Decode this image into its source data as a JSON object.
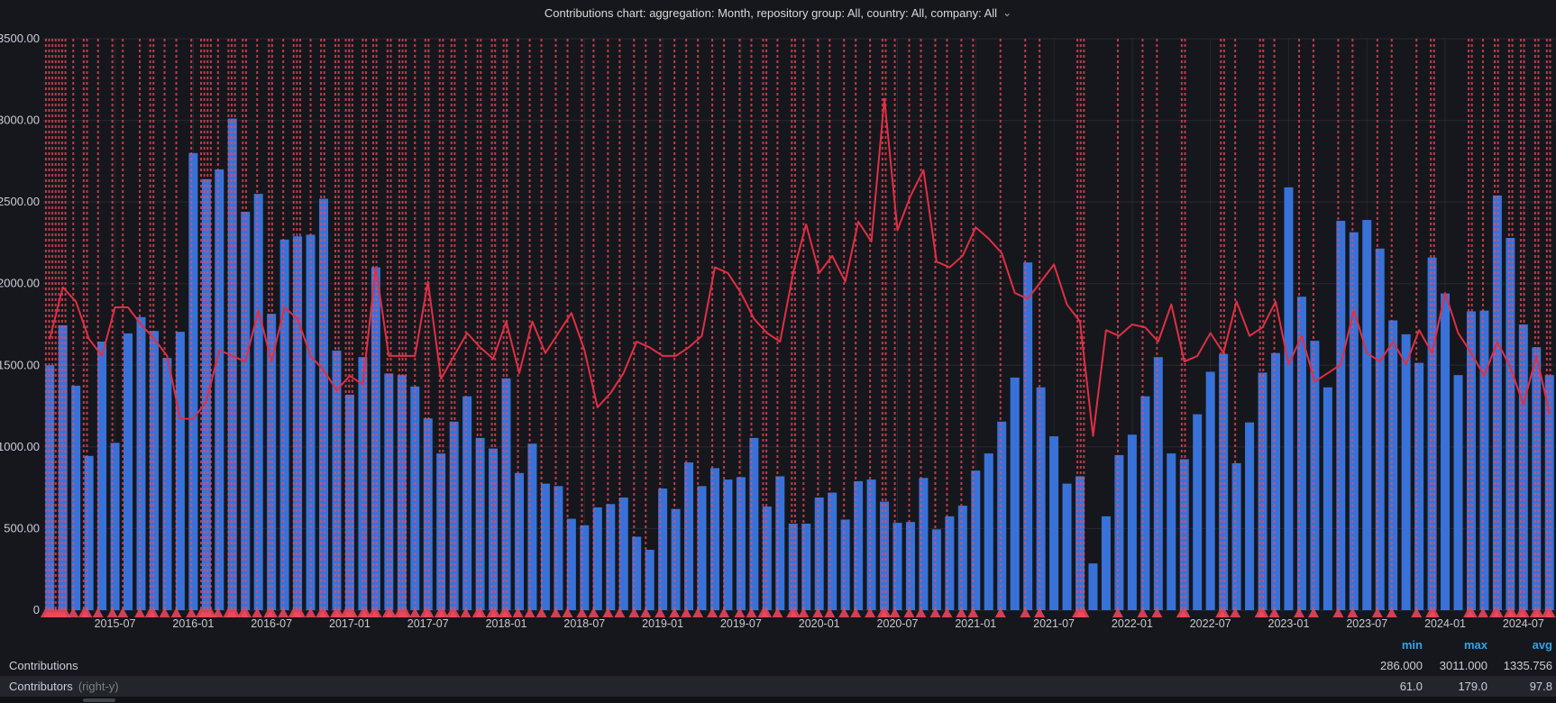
{
  "header": {
    "title": "Contributions chart: aggregation: Month, repository group: All, country: All, company: All"
  },
  "icons": {
    "chevron_down": "⌄"
  },
  "colors": {
    "background": "#16171c",
    "bar_blue": "#3872d9",
    "line_red": "#e02f44",
    "annotation_red": "#f2495c",
    "grid": "#353941",
    "axis_text": "#c8c9cd",
    "legend_header_blue": "#33a2e5",
    "legend_row_alt_bg": "#22252b"
  },
  "chart_data": {
    "type": "bar",
    "subtype": "bar+line combo with vertical annotation lines",
    "title": "Contributions chart: aggregation: Month, repository group: All, country: All, company: All",
    "x_interval": "month",
    "x_start": "2015-02",
    "x_end": "2024-09",
    "x_tick_labels": [
      "2015-07",
      "2016-01",
      "2016-07",
      "2017-01",
      "2017-07",
      "2018-01",
      "2018-07",
      "2019-01",
      "2019-07",
      "2020-01",
      "2020-07",
      "2021-01",
      "2021-07",
      "2022-01",
      "2022-07",
      "2023-01",
      "2023-07",
      "2024-01",
      "2024-07"
    ],
    "x_tick_month_indices": [
      5,
      11,
      17,
      23,
      29,
      35,
      41,
      47,
      53,
      59,
      65,
      71,
      77,
      83,
      89,
      95,
      101,
      107,
      113
    ],
    "left_y": {
      "label": "",
      "min": 0,
      "max": 3500,
      "tick_labels": [
        "3500.00",
        "3000.00",
        "2500.00",
        "2000.00",
        "1500.00",
        "1000.00",
        "500.00",
        "0"
      ],
      "grid": true
    },
    "right_y": {
      "label": "right-y",
      "min": 0,
      "max": 200,
      "axis_labels_shown": false
    },
    "series": [
      {
        "name": "Contributions",
        "type": "bars",
        "axis": "left",
        "color": "#3872d9",
        "values": [
          1500,
          1745,
          1375,
          945,
          1645,
          1025,
          1695,
          1795,
          1710,
          1545,
          1705,
          2800,
          2640,
          2700,
          3011,
          2440,
          2550,
          1815,
          2270,
          2290,
          2300,
          2520,
          1590,
          1320,
          1550,
          2100,
          1450,
          1440,
          1370,
          1175,
          960,
          1155,
          1310,
          1055,
          990,
          1420,
          840,
          1020,
          775,
          760,
          560,
          520,
          630,
          650,
          690,
          450,
          370,
          745,
          620,
          905,
          760,
          870,
          800,
          815,
          1055,
          635,
          820,
          530,
          530,
          690,
          720,
          555,
          790,
          800,
          665,
          535,
          540,
          810,
          495,
          575,
          640,
          855,
          960,
          1155,
          1425,
          2130,
          1365,
          1065,
          775,
          820,
          286,
          575,
          950,
          1075,
          1310,
          1550,
          960,
          925,
          1200,
          1460,
          1570,
          900,
          1150,
          1455,
          1575,
          2590,
          1920,
          1650,
          1365,
          2385,
          2315,
          2390,
          2215,
          1775,
          1690,
          1515,
          2160,
          1940,
          1440,
          1830,
          1835,
          2540,
          2280,
          1750,
          1610,
          1440
        ]
      },
      {
        "name": "Contributors",
        "type": "line",
        "axis": "right",
        "color": "#e02f44",
        "values": [
          95,
          113,
          108,
          95,
          89,
          106,
          106,
          100,
          95,
          89,
          67,
          67,
          73,
          91,
          89,
          87,
          105,
          87,
          106,
          102,
          89,
          84,
          77,
          82,
          79,
          120,
          89,
          89,
          89,
          115,
          81,
          89,
          97,
          92,
          88,
          101,
          83,
          101,
          90,
          97,
          104,
          91,
          71,
          76,
          83,
          94,
          92,
          89,
          89,
          92,
          96,
          120,
          118,
          111,
          102,
          97,
          94,
          118,
          135,
          118,
          124,
          115,
          136,
          129,
          179,
          133,
          145,
          154,
          122,
          120,
          124,
          134,
          130,
          125,
          111,
          109,
          115,
          121,
          107,
          101,
          61,
          98,
          96,
          100,
          99,
          94,
          107,
          87,
          89,
          97,
          90,
          108,
          96,
          99,
          108,
          86,
          96,
          80,
          83,
          86,
          105,
          90,
          87,
          94,
          86,
          98,
          90,
          111,
          97,
          90,
          82,
          94,
          85,
          72,
          89,
          69
        ]
      }
    ],
    "annotations": {
      "style": "vertical dashed lines with triangle markers at bottom",
      "color": "#f2495c",
      "positions_month_units": [
        0.2,
        0.45,
        0.7,
        0.95,
        1.2,
        1.45,
        1.7,
        2.3,
        3.1,
        3.35,
        4.2,
        5.3,
        6.1,
        7.4,
        8.2,
        8.45,
        9.3,
        10.2,
        11.35,
        12.1,
        12.35,
        12.6,
        12.85,
        13.4,
        14.2,
        14.45,
        14.7,
        15.3,
        15.55,
        16.4,
        17.3,
        17.55,
        18.4,
        19.2,
        19.45,
        19.7,
        20.5,
        21.3,
        21.55,
        22.4,
        22.65,
        23.2,
        23.45,
        23.7,
        24.5,
        24.75,
        25.3,
        25.55,
        26.4,
        26.65,
        27.3,
        27.55,
        27.8,
        28.5,
        29.3,
        29.55,
        30.4,
        30.65,
        31.3,
        31.55,
        32.4,
        33.3,
        33.55,
        34.4,
        34.65,
        35.3,
        35.55,
        36.4,
        37.3,
        38.2,
        39.3,
        40.2,
        41.3,
        42.2,
        43.3,
        44.2,
        45.3,
        46.2,
        47.3,
        48.4,
        49.3,
        50.2,
        51.3,
        52.2,
        53.4,
        54.3,
        55.2,
        55.45,
        56.3,
        57.4,
        57.65,
        58.3,
        59.4,
        60.3,
        61.4,
        62.3,
        63.4,
        64.35,
        64.6,
        65.3,
        66.4,
        67.3,
        68.4,
        69.3,
        70.4,
        71.3,
        73.4,
        75.3,
        76.4,
        79.3,
        79.55,
        79.8,
        82.4,
        84.3,
        85.4,
        87.3,
        87.55,
        90.3,
        90.55,
        91.4,
        93.3,
        93.55,
        94.4,
        96.3,
        97.4,
        99.3,
        100.4,
        102.3,
        103.4,
        105.3,
        106.4,
        106.65,
        109.3,
        109.55,
        110.4,
        111.3,
        111.55,
        112.4,
        112.65,
        113.3,
        113.55,
        114.4,
        114.65,
        115.3,
        115.55
      ]
    },
    "legend_position": "bottom table"
  },
  "legend": {
    "headers": {
      "min": "min",
      "max": "max",
      "avg": "avg"
    },
    "rows": [
      {
        "label": "Contributions",
        "suffix": "",
        "min": "286.000",
        "max": "3011.000",
        "avg": "1335.756"
      },
      {
        "label": "Contributors",
        "suffix": "(right-y)",
        "min": "61.0",
        "max": "179.0",
        "avg": "97.8"
      }
    ]
  }
}
